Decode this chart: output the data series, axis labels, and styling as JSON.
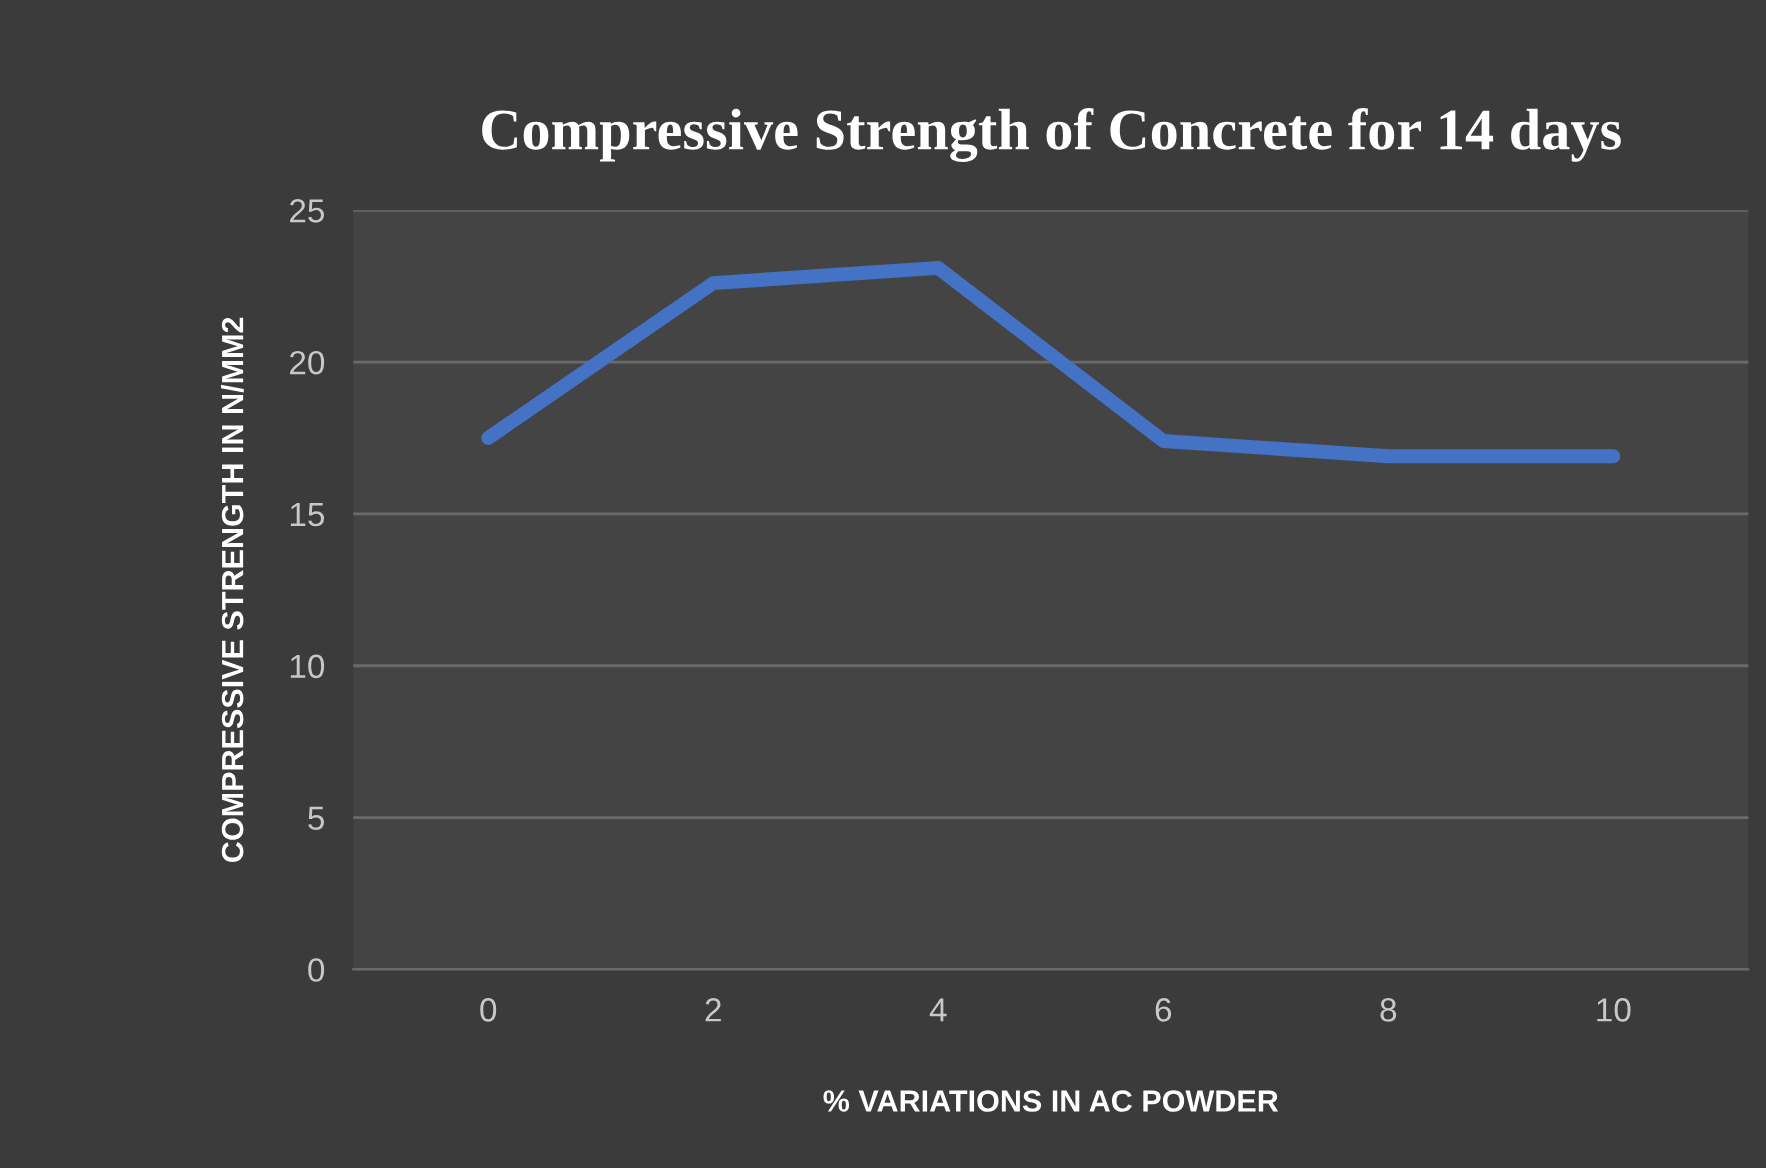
{
  "chart_data": {
    "type": "line",
    "title": "Compressive Strength of Concrete for 14 days",
    "xlabel": "% VARIATIONS IN AC POWDER",
    "ylabel": "COMPRESSIVE STRENGTH IN N/MM2",
    "categories": [
      "0",
      "2",
      "4",
      "6",
      "8",
      "10"
    ],
    "series": [
      {
        "color": "#4472c4",
        "values": [
          17.5,
          22.6,
          23.1,
          17.4,
          16.9,
          16.9
        ]
      }
    ],
    "ylim": [
      0,
      25
    ],
    "yticks": [
      0,
      5,
      10,
      15,
      20,
      25
    ],
    "grid": "y",
    "marker": "none",
    "line_style": "solid"
  }
}
